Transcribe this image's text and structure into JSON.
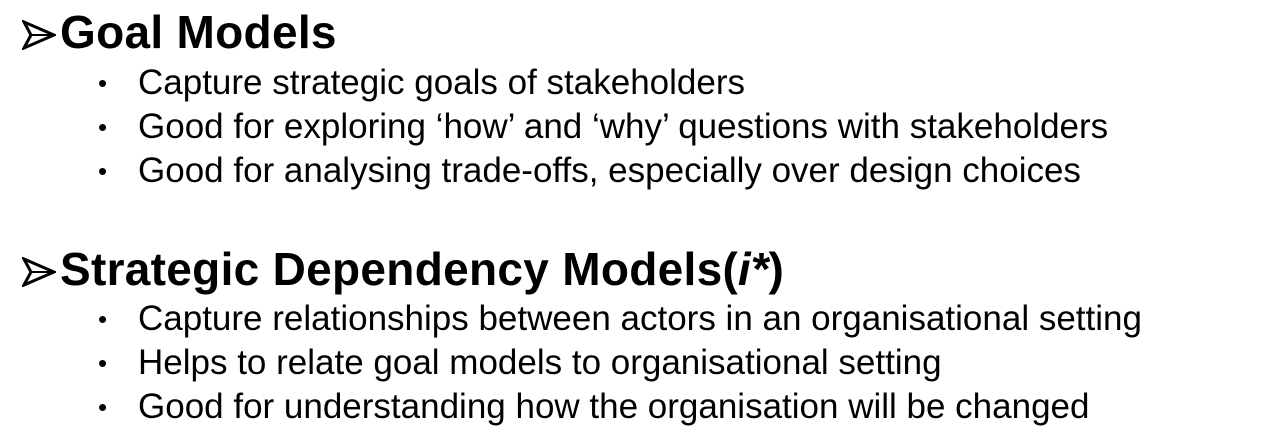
{
  "sections": [
    {
      "heading": "Goal Models",
      "bullets": [
        "Capture strategic goals of stakeholders",
        "Good for exploring ‘how’ and ‘why’ questions with stakeholders",
        "Good for analysing trade-offs, especially over design choices"
      ]
    },
    {
      "heading": "Strategic Dependency Models",
      "heading_suffix_open": " (",
      "heading_suffix_italic": "i*",
      "heading_suffix_close": ")",
      "bullets": [
        "Capture relationships between actors in an organisational setting",
        "Helps to relate goal models to organisational setting",
        "Good for understanding how the organisation will be changed"
      ]
    }
  ],
  "bullet_glyph": "•",
  "icons": {
    "heading_marker": "arrowhead-bullet-icon"
  },
  "colors": {
    "text": "#000000",
    "background": "#ffffff"
  }
}
